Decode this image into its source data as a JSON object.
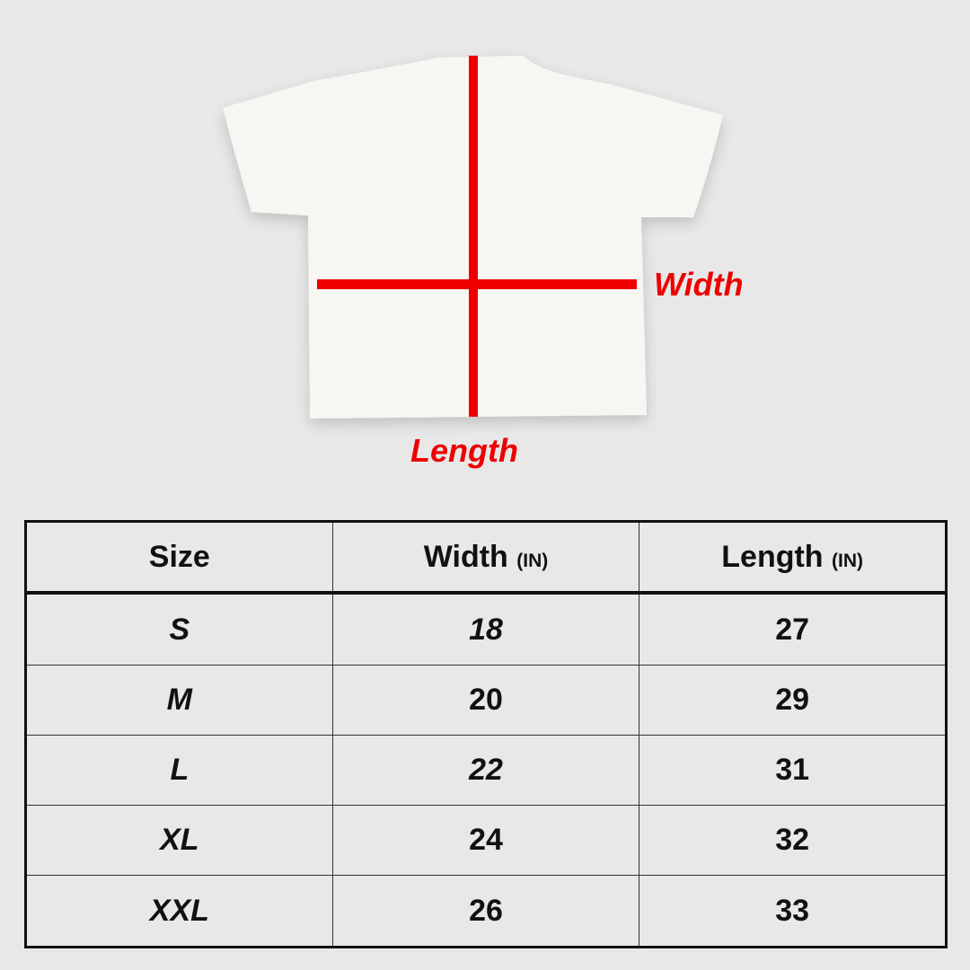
{
  "diagram": {
    "width_label": "Width",
    "length_label": "Length",
    "shirt_color": "#f7f6f2",
    "line_color": "#ee0000"
  },
  "table": {
    "headers": [
      {
        "label": "Size",
        "unit": ""
      },
      {
        "label": "Width",
        "unit": "(IN)"
      },
      {
        "label": "Length",
        "unit": "(IN)"
      }
    ],
    "rows": [
      {
        "size": "S",
        "width": "18",
        "length": "27"
      },
      {
        "size": "M",
        "width": "20",
        "length": "29"
      },
      {
        "size": "L",
        "width": "22",
        "length": "31"
      },
      {
        "size": "XL",
        "width": "24",
        "length": "32"
      },
      {
        "size": "XXL",
        "width": "26",
        "length": "33"
      }
    ]
  }
}
